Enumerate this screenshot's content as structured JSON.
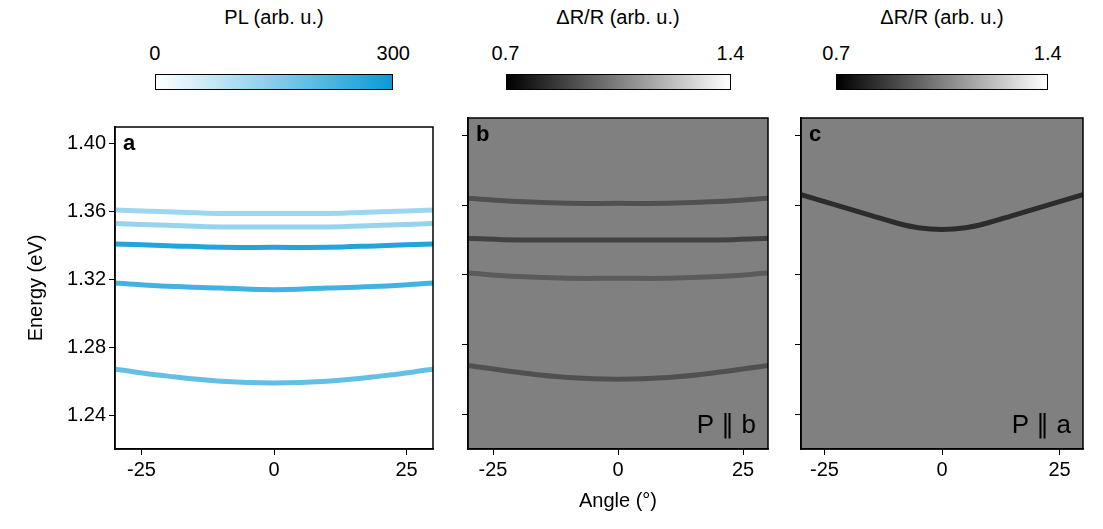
{
  "chart_data": [
    {
      "type": "line",
      "panel": "a",
      "colorbar": {
        "title": "PL (arb. u.)",
        "range": [
          0,
          300
        ],
        "ticks": [
          0,
          300
        ],
        "colors": [
          "#ffffff",
          "#0a9ad8"
        ]
      },
      "baseline": 0,
      "y_label": "Energy (eV)",
      "xlim": [
        -30,
        30
      ],
      "xticks": [
        -25,
        0,
        25
      ],
      "ylim": [
        1.22,
        1.41
      ],
      "yticks": [
        1.24,
        1.28,
        1.32,
        1.36,
        {
          "value": 1.4,
          "label": "1.40"
        }
      ],
      "grid": false,
      "x": [
        -30,
        -20,
        -10,
        0,
        10,
        20,
        30
      ],
      "series": [
        {
          "level": 120,
          "values": [
            1.361,
            1.36,
            1.359,
            1.359,
            1.359,
            1.36,
            1.361
          ]
        },
        {
          "level": 130,
          "values": [
            1.353,
            1.352,
            1.351,
            1.351,
            1.351,
            1.352,
            1.353
          ]
        },
        {
          "level": 270,
          "values": [
            1.341,
            1.34,
            1.339,
            1.339,
            1.339,
            1.34,
            1.341
          ]
        },
        {
          "level": 230,
          "values": [
            1.318,
            1.316,
            1.315,
            1.314,
            1.315,
            1.316,
            1.318
          ]
        },
        {
          "level": 190,
          "values": [
            1.267,
            1.263,
            1.26,
            1.259,
            1.26,
            1.263,
            1.267
          ]
        }
      ]
    },
    {
      "type": "line",
      "panel": "b",
      "annotation": "P ∥ b",
      "colorbar": {
        "title": "ΔR/R (arb. u.)",
        "range": [
          0.7,
          1.4
        ],
        "ticks": [
          0.7,
          1.4
        ],
        "colors": [
          "#000000",
          "#ffffff"
        ]
      },
      "baseline": 1.05,
      "x_label": "Angle (°)",
      "xlim": [
        -30,
        30
      ],
      "xticks": [
        -25,
        0,
        25
      ],
      "ylim": [
        1.22,
        1.41
      ],
      "yticks": [
        1.24,
        1.28,
        1.32,
        1.36,
        {
          "value": 1.4,
          "label": "1.40"
        }
      ],
      "grid": false,
      "tick_labels": "x",
      "x": [
        -30,
        -20,
        -10,
        0,
        10,
        20,
        30
      ],
      "series": [
        {
          "level": 0.92,
          "values": [
            1.364,
            1.362,
            1.361,
            1.361,
            1.361,
            1.362,
            1.364
          ]
        },
        {
          "level": 0.88,
          "values": [
            1.341,
            1.34,
            1.34,
            1.34,
            1.34,
            1.34,
            1.341
          ]
        },
        {
          "level": 0.95,
          "values": [
            1.321,
            1.319,
            1.318,
            1.318,
            1.318,
            1.319,
            1.321
          ]
        },
        {
          "level": 0.92,
          "values": [
            1.268,
            1.264,
            1.261,
            1.26,
            1.261,
            1.264,
            1.268
          ]
        }
      ]
    },
    {
      "type": "line",
      "panel": "c",
      "annotation": "P ∥ a",
      "colorbar": {
        "title": "ΔR/R (arb. u.)",
        "range": [
          0.7,
          1.4
        ],
        "ticks": [
          0.7,
          1.4
        ],
        "colors": [
          "#000000",
          "#ffffff"
        ]
      },
      "baseline": 1.05,
      "xlim": [
        -30,
        30
      ],
      "xticks": [
        -25,
        0,
        25
      ],
      "ylim": [
        1.22,
        1.41
      ],
      "yticks": [
        1.24,
        1.28,
        1.32,
        1.36,
        {
          "value": 1.4,
          "label": "1.40"
        }
      ],
      "grid": false,
      "tick_labels": "x",
      "x": [
        -30,
        -25,
        -20,
        -15,
        -10,
        -5,
        0,
        5,
        10,
        15,
        20,
        25,
        30
      ],
      "series": [
        {
          "level": 0.82,
          "values": [
            1.366,
            1.362,
            1.358,
            1.354,
            1.35,
            1.347,
            1.346,
            1.347,
            1.35,
            1.354,
            1.358,
            1.362,
            1.366
          ]
        }
      ]
    }
  ]
}
